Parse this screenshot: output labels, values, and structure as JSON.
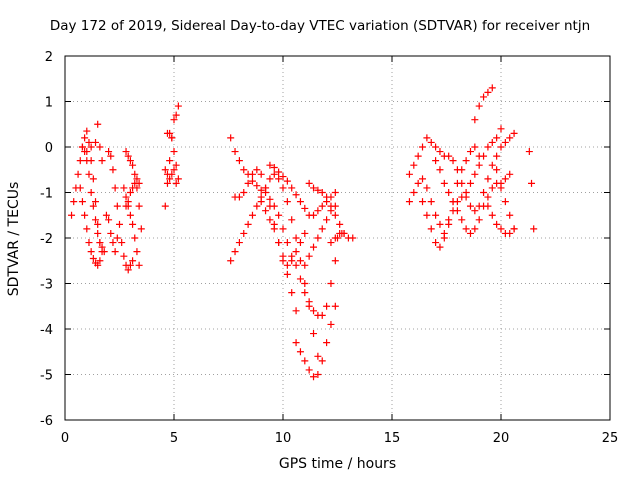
{
  "chart_data": {
    "type": "scatter",
    "title": "Day 172 of 2019, Sidereal Day-to-day VTEC variation (SDTVAR) for receiver ntjn",
    "xlabel": "GPS time / hours",
    "ylabel": "SDTVAR / TECUs",
    "xlim": [
      0,
      25
    ],
    "ylim": [
      -6,
      2
    ],
    "xticks": [
      "0",
      "5",
      "10",
      "15",
      "20",
      "25"
    ],
    "yticks": [
      "2",
      "1",
      "0",
      "-1",
      "-2",
      "-3",
      "-4",
      "-5",
      "-6"
    ],
    "grid": true,
    "marker": "+",
    "color": "#ff0000",
    "series": [
      {
        "x": [
          0.3,
          0.4,
          0.5,
          0.6,
          0.7,
          0.8,
          0.9,
          1.0,
          1.1,
          1.2,
          1.3,
          1.4,
          1.5,
          1.6
        ],
        "y": [
          -1.5,
          -1.2,
          -0.9,
          -0.6,
          -0.3,
          0.0,
          0.2,
          0.35,
          0.1,
          -0.3,
          -0.7,
          -1.2,
          -1.7,
          -2.1
        ]
      },
      {
        "x": [
          0.7,
          0.8,
          0.9,
          1.0,
          1.1,
          1.2,
          1.3,
          1.4,
          1.5,
          1.6,
          1.7
        ],
        "y": [
          -0.9,
          -1.2,
          -1.5,
          -1.8,
          -2.1,
          -2.3,
          -2.45,
          -2.55,
          -2.6,
          -2.5,
          -2.3
        ]
      },
      {
        "x": [
          0.8,
          0.9,
          1.0,
          1.1,
          1.2,
          1.3,
          1.4,
          1.5,
          1.6,
          1.7,
          1.8
        ],
        "y": [
          0.0,
          -0.1,
          -0.3,
          -0.6,
          -1.0,
          -1.3,
          -1.6,
          -1.9,
          -2.1,
          -2.2,
          -2.3
        ]
      },
      {
        "x": [
          1.0,
          1.2,
          1.4,
          1.5,
          1.6,
          1.7
        ],
        "y": [
          -0.1,
          0.0,
          0.1,
          0.5,
          0.0,
          -0.3
        ]
      },
      {
        "x": [
          2.0,
          2.1,
          2.2,
          2.3,
          2.4,
          2.5,
          2.6,
          2.7,
          2.8,
          2.9,
          3.0,
          3.1
        ],
        "y": [
          -0.1,
          -0.2,
          -0.5,
          -0.9,
          -1.3,
          -1.7,
          -2.1,
          -2.4,
          -2.6,
          -2.7,
          -2.6,
          -2.5
        ]
      },
      {
        "x": [
          1.9,
          2.0,
          2.1,
          2.2,
          2.3,
          2.4
        ],
        "y": [
          -1.5,
          -1.6,
          -1.9,
          -2.1,
          -2.3,
          -2.0
        ]
      },
      {
        "x": [
          2.7,
          2.8,
          2.9,
          3.0,
          3.1,
          3.2,
          3.3,
          3.4
        ],
        "y": [
          -0.9,
          -1.1,
          -1.3,
          -1.5,
          -1.7,
          -2.0,
          -2.3,
          -2.6
        ]
      },
      {
        "x": [
          2.8,
          2.9,
          3.0,
          3.1,
          3.2,
          3.3,
          3.4,
          3.5
        ],
        "y": [
          -0.1,
          -0.2,
          -0.3,
          -0.4,
          -0.6,
          -0.9,
          -1.3,
          -1.8
        ]
      },
      {
        "x": [
          2.8,
          2.9,
          3.0,
          3.1,
          3.2,
          3.3,
          3.4
        ],
        "y": [
          -1.3,
          -1.2,
          -1.0,
          -0.9,
          -0.8,
          -0.7,
          -0.8
        ]
      },
      {
        "x": [
          4.6,
          4.7,
          4.8,
          4.9,
          5.0,
          5.1,
          5.2
        ],
        "y": [
          -1.3,
          -0.8,
          -0.3,
          0.2,
          0.6,
          0.7,
          0.9
        ]
      },
      {
        "x": [
          4.6,
          4.7,
          4.8,
          4.9,
          5.0,
          5.1
        ],
        "y": [
          -0.5,
          -0.6,
          -0.7,
          -0.6,
          -0.5,
          -0.8
        ]
      },
      {
        "x": [
          4.7,
          4.8,
          4.9,
          5.0,
          5.1,
          5.2
        ],
        "y": [
          0.3,
          0.3,
          0.2,
          -0.1,
          -0.4,
          -0.7
        ]
      },
      {
        "x": [
          7.6,
          7.8,
          8.0,
          8.2,
          8.4,
          8.6,
          8.8,
          9.0,
          9.2,
          9.4,
          9.6,
          9.8,
          10.0,
          10.2,
          10.4,
          10.6,
          10.8,
          11.0,
          11.2,
          11.4,
          11.6,
          11.8,
          12.0,
          12.2,
          12.4,
          12.5,
          12.7
        ],
        "y": [
          0.2,
          -0.1,
          -0.3,
          -0.5,
          -0.6,
          -0.75,
          -0.85,
          -0.95,
          -1.0,
          -1.15,
          -1.3,
          -1.5,
          -1.8,
          -2.1,
          -2.4,
          -2.6,
          -2.9,
          -3.2,
          -3.4,
          -3.6,
          -3.7,
          -3.7,
          -3.5,
          -3.0,
          -2.5,
          -2.0,
          -1.9
        ]
      },
      {
        "x": [
          7.6,
          7.8,
          8.0,
          8.2,
          8.4,
          8.6,
          8.8,
          9.0,
          9.2,
          9.4,
          9.6,
          9.8,
          10.0,
          10.2,
          10.4,
          10.6,
          10.8,
          11.0,
          11.2,
          11.4,
          11.6
        ],
        "y": [
          -2.5,
          -2.3,
          -2.1,
          -1.9,
          -1.7,
          -1.5,
          -1.3,
          -1.1,
          -0.9,
          -0.7,
          -0.6,
          -0.7,
          -0.9,
          -1.2,
          -1.6,
          -2.0,
          -2.5,
          -3.0,
          -3.5,
          -4.1,
          -4.6
        ]
      },
      {
        "x": [
          7.8,
          8.0,
          8.2,
          8.4,
          8.6,
          8.8,
          9.0,
          9.2,
          9.4,
          9.6,
          9.8,
          10.0,
          10.2,
          10.4,
          10.6
        ],
        "y": [
          -1.1,
          -1.1,
          -1.0,
          -0.8,
          -0.6,
          -0.5,
          -0.6,
          -0.9,
          -1.3,
          -1.7,
          -2.1,
          -2.5,
          -2.8,
          -3.2,
          -3.6
        ]
      },
      {
        "x": [
          9.0,
          9.2,
          9.4,
          9.6,
          9.8,
          10.0,
          10.2,
          10.4,
          10.6,
          10.8,
          11.0
        ],
        "y": [
          -1.2,
          -1.4,
          -1.6,
          -1.8,
          -2.1,
          -2.4,
          -2.6,
          -2.5,
          -2.3,
          -2.1,
          -1.9
        ]
      },
      {
        "x": [
          9.4,
          9.6,
          9.8,
          10.0,
          10.2,
          10.4,
          10.6,
          10.8,
          11.0,
          11.2,
          11.4,
          11.6,
          11.8,
          12.0,
          12.2,
          12.4
        ],
        "y": [
          -0.4,
          -0.45,
          -0.55,
          -0.65,
          -0.75,
          -0.9,
          -1.05,
          -1.2,
          -1.35,
          -1.5,
          -1.5,
          -1.4,
          -1.3,
          -1.2,
          -1.1,
          -1.0
        ]
      },
      {
        "x": [
          10.6,
          10.8,
          11.0,
          11.2,
          11.4,
          11.6,
          11.8,
          12.0,
          12.2,
          12.4
        ],
        "y": [
          -4.3,
          -4.5,
          -4.7,
          -4.9,
          -5.05,
          -5.0,
          -4.7,
          -4.3,
          -3.9,
          -3.5
        ]
      },
      {
        "x": [
          11.2,
          11.4,
          11.6,
          11.8,
          12.0,
          12.2,
          12.4,
          12.6,
          12.8
        ],
        "y": [
          -0.8,
          -0.9,
          -0.95,
          -1.0,
          -1.1,
          -1.3,
          -1.5,
          -1.7,
          -1.9
        ]
      },
      {
        "x": [
          11.0,
          11.2,
          11.4,
          11.6,
          11.8,
          12.0,
          12.2,
          12.4
        ],
        "y": [
          -2.6,
          -2.4,
          -2.2,
          -2.0,
          -1.8,
          -1.6,
          -1.4,
          -1.3
        ]
      },
      {
        "x": [
          12.2,
          12.4,
          12.6,
          12.8,
          13.0,
          13.2
        ],
        "y": [
          -2.1,
          -2.0,
          -1.9,
          -1.9,
          -2.0,
          -2.0
        ]
      },
      {
        "x": [
          15.8,
          16.0,
          16.2,
          16.4,
          16.6,
          16.8,
          17.0,
          17.2,
          17.4,
          17.6,
          17.8,
          18.0,
          18.2,
          18.4,
          18.6,
          18.8,
          19.0,
          19.2,
          19.4,
          19.6,
          19.8,
          20.0,
          20.2,
          20.4,
          20.6
        ],
        "y": [
          -0.6,
          -0.4,
          -0.2,
          0.0,
          0.2,
          0.1,
          0.0,
          -0.1,
          -0.2,
          -0.2,
          -0.3,
          -0.5,
          -0.8,
          -1.1,
          -1.3,
          -1.4,
          -1.3,
          -1.0,
          -0.7,
          -0.4,
          -0.2,
          0.0,
          0.1,
          0.2,
          0.3
        ]
      },
      {
        "x": [
          15.8,
          16.0,
          16.2,
          16.4,
          16.6,
          16.8,
          17.0,
          17.2,
          17.4,
          17.6,
          17.8,
          18.0,
          18.2,
          18.4,
          18.6,
          18.8,
          19.0
        ],
        "y": [
          -1.2,
          -1.0,
          -0.8,
          -0.7,
          -0.9,
          -1.2,
          -1.5,
          -1.7,
          -1.9,
          -1.6,
          -1.2,
          -0.8,
          -0.5,
          -0.3,
          -0.1,
          0.0,
          -0.2
        ]
      },
      {
        "x": [
          16.4,
          16.6,
          16.8,
          17.0,
          17.2,
          17.4,
          17.6,
          17.8,
          18.0,
          18.2,
          18.4,
          18.6,
          18.8,
          19.0,
          19.2,
          19.4,
          19.6,
          19.8,
          20.0
        ],
        "y": [
          -1.2,
          -1.5,
          -1.8,
          -2.1,
          -2.2,
          -2.0,
          -1.7,
          -1.4,
          -1.2,
          -1.1,
          -1.0,
          -0.8,
          -0.6,
          -0.4,
          -0.2,
          0.0,
          0.1,
          0.2,
          0.4
        ]
      },
      {
        "x": [
          17.0,
          17.2,
          17.4,
          17.6,
          17.8,
          18.0,
          18.2,
          18.4,
          18.6,
          18.8,
          19.0,
          19.2,
          19.4,
          19.6,
          19.8,
          20.0,
          20.2,
          20.4
        ],
        "y": [
          -0.3,
          -0.5,
          -0.8,
          -1.0,
          -1.2,
          -1.4,
          -1.6,
          -1.8,
          -1.9,
          -1.8,
          -1.6,
          -1.3,
          -1.1,
          -0.9,
          -0.8,
          -0.8,
          -0.7,
          -0.6
        ]
      },
      {
        "x": [
          18.8,
          19.0,
          19.2,
          19.4,
          19.6,
          19.8,
          20.0,
          20.2,
          20.4,
          20.6
        ],
        "y": [
          0.6,
          0.9,
          1.1,
          1.2,
          1.3,
          -0.5,
          -0.9,
          -1.2,
          -1.5,
          -1.8
        ]
      },
      {
        "x": [
          19.4,
          19.6,
          19.8,
          20.0,
          20.2,
          20.4,
          20.6
        ],
        "y": [
          -1.3,
          -1.5,
          -1.7,
          -1.8,
          -1.9,
          -1.9,
          -1.8
        ]
      },
      {
        "x": [
          21.3,
          21.4,
          21.5
        ],
        "y": [
          -0.1,
          -0.8,
          -1.8
        ]
      }
    ]
  }
}
